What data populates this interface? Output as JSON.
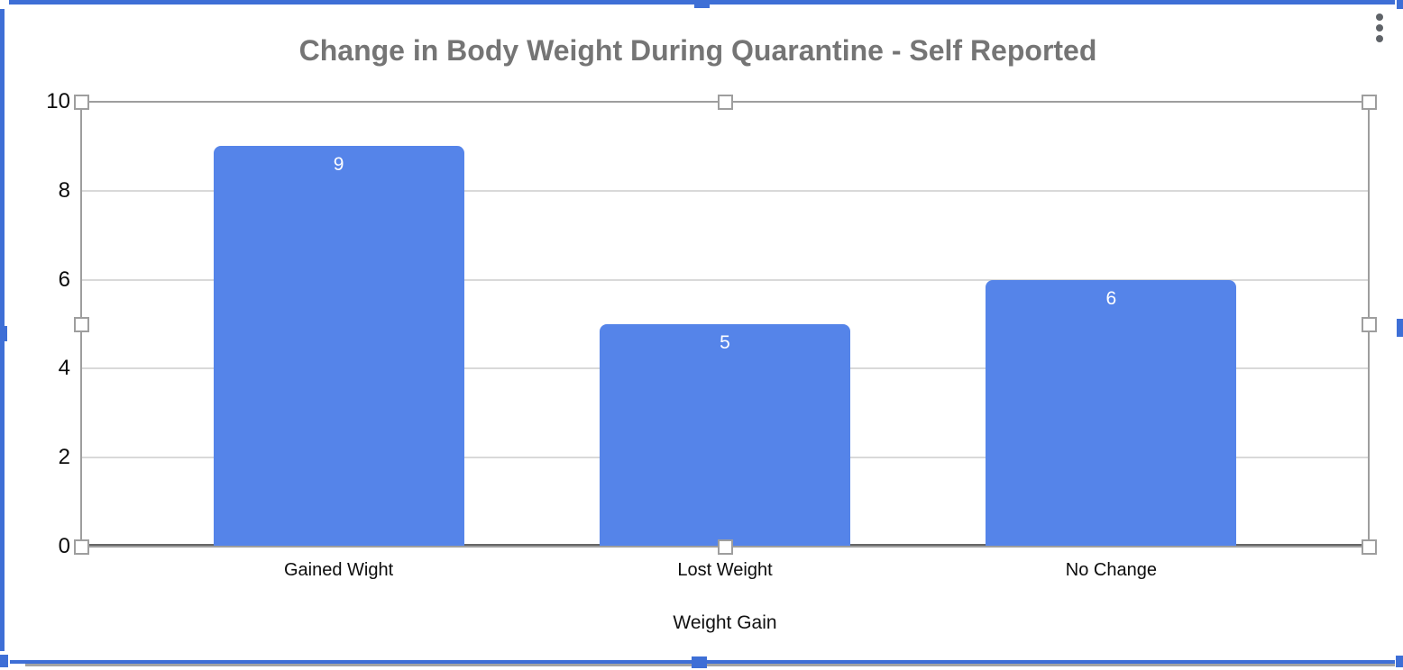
{
  "menu": {
    "more_options_icon": "kebab-vertical"
  },
  "selection": {
    "state": "chart-selected",
    "frame_color": "#3e6fd6",
    "handle_color": "#9e9e9e"
  },
  "chart_data": {
    "type": "bar",
    "title": "Change in Body Weight During Quarantine - Self Reported",
    "categories": [
      "Gained Wight",
      "Lost Weight",
      "No Change"
    ],
    "values": [
      9,
      5,
      6
    ],
    "data_labels": [
      "9",
      "5",
      "6"
    ],
    "xlabel": "Weight Gain",
    "ylabel": "",
    "ylim": [
      0,
      10
    ],
    "yticks": [
      0,
      2,
      4,
      6,
      8,
      10
    ],
    "grid": true,
    "legend_position": "none",
    "bar_color": "#5584e9",
    "data_label_color": "#ffffff",
    "title_color": "#757575",
    "gridline_color": "#d9d9d9"
  }
}
